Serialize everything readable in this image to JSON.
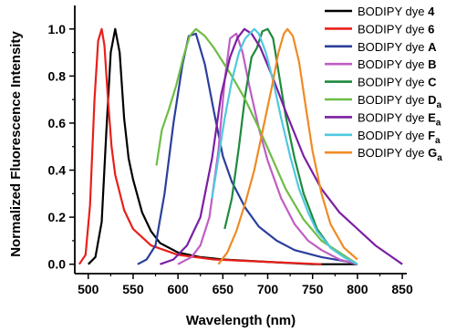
{
  "chart_data": {
    "type": "line",
    "title": "",
    "xlabel": "Wavelength (nm)",
    "ylabel": "Normalized Fluorescence Intensity",
    "xlim": [
      485,
      855
    ],
    "ylim": [
      -0.04,
      1.1
    ],
    "xticks": [
      500,
      550,
      600,
      650,
      700,
      750,
      800,
      850
    ],
    "yticks": [
      0.0,
      0.2,
      0.4,
      0.6,
      0.8,
      1.0
    ],
    "xtick_labels": [
      "500",
      "550",
      "600",
      "650",
      "700",
      "750",
      "800",
      "850"
    ],
    "ytick_labels": [
      "0.0",
      "0.2",
      "0.4",
      "0.6",
      "0.8",
      "1.0"
    ],
    "grid": false,
    "legend_position": "top-right",
    "series": [
      {
        "name": "BODIPY dye 4",
        "label_prefix": "BODIPY dye ",
        "label_main": "4",
        "label_sub": "",
        "color": "#000000",
        "x": [
          500,
          508,
          515,
          520,
          525,
          530,
          535,
          540,
          545,
          550,
          560,
          570,
          580,
          600,
          625,
          650,
          700,
          750,
          800
        ],
        "y": [
          0.0,
          0.03,
          0.18,
          0.55,
          0.9,
          1.0,
          0.9,
          0.62,
          0.45,
          0.36,
          0.22,
          0.14,
          0.09,
          0.05,
          0.03,
          0.02,
          0.01,
          0.0,
          0.0
        ]
      },
      {
        "name": "BODIPY dye 6",
        "label_prefix": "BODIPY dye ",
        "label_main": "6",
        "label_sub": "",
        "color": "#e8201a",
        "x": [
          490,
          497,
          502,
          507,
          511,
          515,
          518,
          522,
          526,
          530,
          540,
          550,
          570,
          600,
          640,
          700,
          760
        ],
        "y": [
          0.0,
          0.04,
          0.25,
          0.7,
          0.95,
          1.0,
          0.93,
          0.7,
          0.5,
          0.38,
          0.23,
          0.15,
          0.08,
          0.04,
          0.02,
          0.01,
          0.0
        ]
      },
      {
        "name": "BODIPY dye A",
        "label_prefix": "BODIPY dye ",
        "label_main": "A",
        "label_sub": "",
        "color": "#2b3f9c",
        "x": [
          555,
          565,
          575,
          585,
          595,
          605,
          612,
          620,
          630,
          640,
          650,
          660,
          675,
          690,
          710,
          730,
          760,
          790,
          800
        ],
        "y": [
          0.0,
          0.02,
          0.08,
          0.3,
          0.6,
          0.85,
          0.97,
          0.98,
          0.85,
          0.65,
          0.46,
          0.35,
          0.24,
          0.16,
          0.1,
          0.06,
          0.03,
          0.01,
          0.0
        ]
      },
      {
        "name": "BODIPY dye B",
        "label_prefix": "BODIPY dye ",
        "label_main": "B",
        "label_sub": "",
        "color": "#bf5ec4",
        "x": [
          600,
          615,
          625,
          635,
          645,
          652,
          658,
          665,
          672,
          680,
          690,
          700,
          715,
          730,
          745,
          760,
          780,
          800
        ],
        "y": [
          0.0,
          0.03,
          0.08,
          0.2,
          0.48,
          0.78,
          0.96,
          0.98,
          0.9,
          0.75,
          0.58,
          0.44,
          0.28,
          0.17,
          0.1,
          0.06,
          0.02,
          0.0
        ]
      },
      {
        "name": "BODIPY dye C",
        "label_prefix": "BODIPY dye ",
        "label_main": "C",
        "label_sub": "",
        "color": "#1e8a3e",
        "x": [
          652,
          660,
          668,
          675,
          682,
          688,
          694,
          700,
          706,
          712,
          720,
          730,
          740,
          755,
          770,
          785,
          800
        ],
        "y": [
          0.15,
          0.28,
          0.5,
          0.72,
          0.88,
          0.92,
          0.99,
          1.0,
          0.96,
          0.82,
          0.63,
          0.45,
          0.3,
          0.15,
          0.07,
          0.03,
          0.0
        ]
      },
      {
        "name": "BODIPY dye Da",
        "label_prefix": "BODIPY dye ",
        "label_main": "D",
        "label_sub": "a",
        "color": "#6dbd45",
        "x": [
          576,
          582,
          590,
          598,
          606,
          613,
          620,
          630,
          640,
          650,
          660,
          675,
          690,
          705,
          720,
          740,
          760,
          780,
          800
        ],
        "y": [
          0.42,
          0.57,
          0.66,
          0.76,
          0.88,
          0.97,
          1.0,
          0.97,
          0.92,
          0.86,
          0.8,
          0.7,
          0.58,
          0.45,
          0.32,
          0.19,
          0.1,
          0.05,
          0.0
        ]
      },
      {
        "name": "BODIPY dye Ea",
        "label_prefix": "BODIPY dye ",
        "label_main": "E",
        "label_sub": "a",
        "color": "#7b1fa2",
        "x": [
          580,
          595,
          610,
          625,
          638,
          648,
          658,
          666,
          674,
          682,
          692,
          705,
          720,
          740,
          760,
          780,
          800,
          820,
          835,
          850
        ],
        "y": [
          0.0,
          0.02,
          0.08,
          0.2,
          0.45,
          0.72,
          0.88,
          0.96,
          1.0,
          0.98,
          0.92,
          0.8,
          0.65,
          0.46,
          0.32,
          0.22,
          0.15,
          0.08,
          0.04,
          0.0
        ]
      },
      {
        "name": "BODIPY dye Fa",
        "label_prefix": "BODIPY dye ",
        "label_main": "F",
        "label_sub": "a",
        "color": "#4fc9e0",
        "x": [
          638,
          645,
          652,
          660,
          668,
          675,
          680,
          685,
          690,
          698,
          706,
          715,
          725,
          735,
          745,
          755,
          770,
          785,
          800
        ],
        "y": [
          0.28,
          0.45,
          0.62,
          0.78,
          0.9,
          0.96,
          0.98,
          1.0,
          0.98,
          0.9,
          0.78,
          0.62,
          0.46,
          0.32,
          0.22,
          0.14,
          0.07,
          0.03,
          0.0
        ]
      },
      {
        "name": "BODIPY dye Ga",
        "label_prefix": "BODIPY dye ",
        "label_main": "G",
        "label_sub": "a",
        "color": "#f08a24",
        "x": [
          645,
          655,
          665,
          675,
          685,
          695,
          705,
          712,
          718,
          722,
          728,
          735,
          742,
          750,
          760,
          770,
          785,
          800
        ],
        "y": [
          0.0,
          0.05,
          0.14,
          0.26,
          0.4,
          0.58,
          0.76,
          0.9,
          0.98,
          1.0,
          0.97,
          0.86,
          0.68,
          0.48,
          0.3,
          0.17,
          0.07,
          0.02
        ]
      }
    ]
  }
}
